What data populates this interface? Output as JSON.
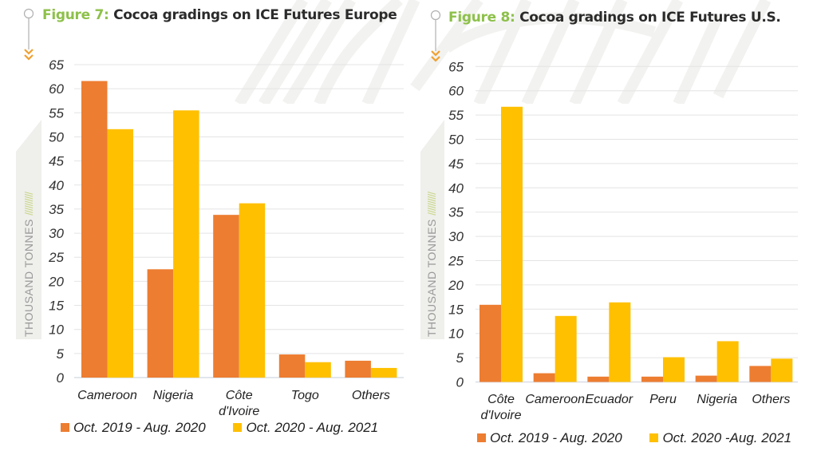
{
  "colors": {
    "series1": "#ed7d31",
    "series2": "#ffc000",
    "figure_number": "#8dc04a",
    "title": "#2b2b2b",
    "arrow": "#f0a030",
    "gridline": "#e4e4e4"
  },
  "chart_data": [
    {
      "type": "bar",
      "figure_label": "Figure 7:",
      "title": "Cocoa gradings on ICE Futures Europe",
      "xlabel": "",
      "ylabel": "THOUSAND TONNES",
      "ylim": [
        0,
        65
      ],
      "yticks": [
        0,
        5,
        10,
        15,
        20,
        25,
        30,
        35,
        40,
        45,
        50,
        55,
        60,
        65
      ],
      "grid": true,
      "legend_position": "bottom",
      "categories": [
        [
          "Cameroon"
        ],
        [
          "Nigeria"
        ],
        [
          "Côte",
          "d'Ivoire"
        ],
        [
          "Togo"
        ],
        [
          "Others"
        ]
      ],
      "series": [
        {
          "name": "Oct. 2019 - Aug. 2020",
          "values": [
            61.6,
            22.5,
            33.8,
            4.8,
            3.5
          ]
        },
        {
          "name": "Oct. 2020 - Aug. 2021",
          "values": [
            51.6,
            55.5,
            36.2,
            3.2,
            2.0
          ]
        }
      ]
    },
    {
      "type": "bar",
      "figure_label": "Figure 8:",
      "title": "Cocoa gradings on ICE Futures U.S.",
      "xlabel": "",
      "ylabel": "THOUSAND TONNES",
      "ylim": [
        0,
        65
      ],
      "yticks": [
        0,
        5,
        10,
        15,
        20,
        25,
        30,
        35,
        40,
        45,
        50,
        55,
        60,
        65
      ],
      "grid": true,
      "legend_position": "bottom",
      "categories": [
        [
          "Côte",
          "d'Ivoire"
        ],
        [
          "Cameroon"
        ],
        [
          "Ecuador"
        ],
        [
          "Peru"
        ],
        [
          "Nigeria"
        ],
        [
          "Others"
        ]
      ],
      "series": [
        {
          "name": "Oct. 2019 - Aug. 2020",
          "values": [
            15.9,
            1.8,
            1.1,
            1.1,
            1.3,
            3.3
          ]
        },
        {
          "name": "Oct. 2020 -Aug. 2021",
          "values": [
            56.7,
            13.6,
            16.4,
            5.1,
            8.4,
            4.8
          ]
        }
      ]
    }
  ],
  "decorations": {
    "ylabel_hatch": "//////////",
    "marker_icon": "circle-arrow-down-icon"
  }
}
